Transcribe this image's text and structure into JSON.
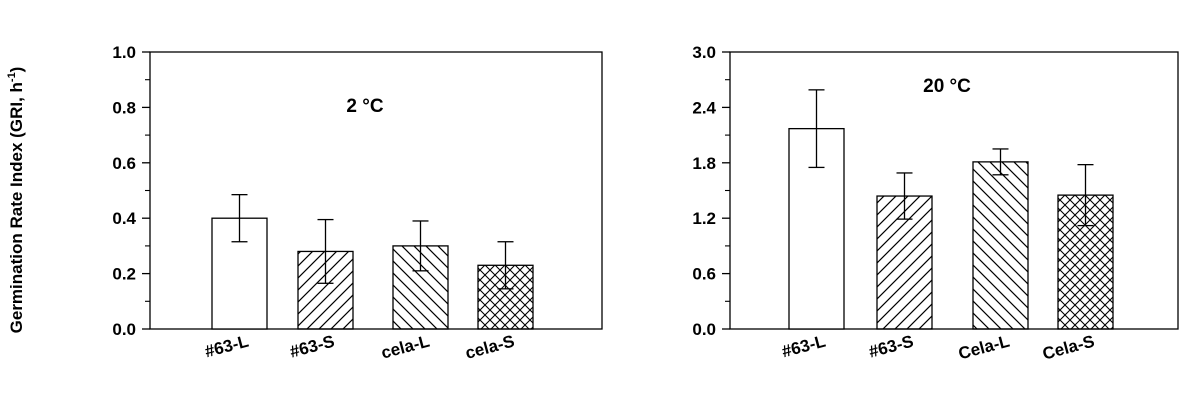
{
  "ylabel": "Germination Rate Index (GRI, h",
  "ylabel_sup": "-1",
  "chart_data": [
    {
      "type": "bar",
      "annotation": "2 °C",
      "categories": [
        "#63-L",
        "#63-S",
        "cela-L",
        "cela-S"
      ],
      "values": [
        0.4,
        0.28,
        0.3,
        0.23
      ],
      "errors": [
        0.085,
        0.115,
        0.09,
        0.085
      ],
      "patterns": [
        "none",
        "diag-up",
        "diag-down",
        "crosshatch"
      ],
      "ylim": [
        0,
        1.0
      ],
      "yticks": [
        0.0,
        0.2,
        0.4,
        0.6,
        0.8,
        1.0
      ],
      "ytick_labels": [
        "0.0",
        "0.2",
        "0.4",
        "0.6",
        "0.8",
        "1.0"
      ]
    },
    {
      "type": "bar",
      "annotation": "20 °C",
      "categories": [
        "#63-L",
        "#63-S",
        "Cela-L",
        "Cela-S"
      ],
      "values": [
        2.17,
        1.44,
        1.81,
        1.45
      ],
      "errors": [
        0.42,
        0.25,
        0.14,
        0.33
      ],
      "patterns": [
        "none",
        "diag-up",
        "diag-down",
        "crosshatch"
      ],
      "ylim": [
        0,
        3.0
      ],
      "yticks": [
        0.0,
        0.6,
        1.2,
        1.8,
        2.4,
        3.0
      ],
      "ytick_labels": [
        "0.0",
        "0.6",
        "1.2",
        "1.8",
        "2.4",
        "3.0"
      ]
    }
  ]
}
